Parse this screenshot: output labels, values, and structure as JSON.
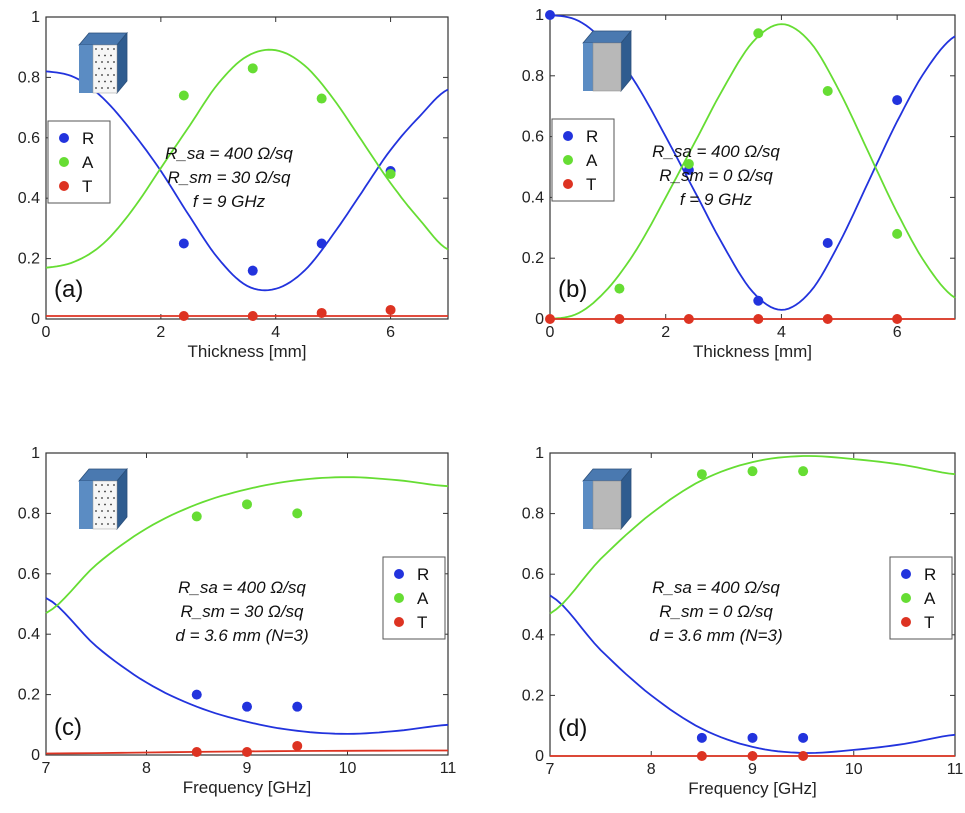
{
  "colors": {
    "R": "#2233dd",
    "A": "#66dd33",
    "T": "#dd3322",
    "axis": "#333333",
    "background": "#ffffff"
  },
  "chart_data": [
    {
      "type": "line",
      "panel_label": "(a)",
      "xlabel": "Thickness [mm]",
      "ylabel": "",
      "xlim": [
        0,
        7
      ],
      "ylim": [
        0,
        1
      ],
      "xticks": [
        "0",
        "2",
        "4",
        "6"
      ],
      "yticks": [
        "0",
        "0.2",
        "0.4",
        "0.6",
        "0.8",
        "1"
      ],
      "annotation": [
        "R_sa = 400 Ω/sq",
        "R_sm = 30 Ω/sq",
        "f = 9 GHz"
      ],
      "legend": [
        "R",
        "A",
        "T"
      ],
      "legend_position": "left",
      "icon": "porous-slab-icon",
      "series": [
        {
          "name": "R",
          "kind": "line",
          "x": [
            0,
            0.5,
            1,
            1.5,
            2,
            2.5,
            3,
            3.5,
            4,
            4.5,
            5,
            5.5,
            6,
            6.5,
            7
          ],
          "y": [
            0.82,
            0.8,
            0.73,
            0.62,
            0.49,
            0.34,
            0.2,
            0.11,
            0.1,
            0.16,
            0.28,
            0.42,
            0.56,
            0.67,
            0.76
          ]
        },
        {
          "name": "A",
          "kind": "line",
          "x": [
            0,
            0.5,
            1,
            1.5,
            2,
            2.5,
            3,
            3.5,
            4,
            4.5,
            5,
            5.5,
            6,
            6.5,
            7
          ],
          "y": [
            0.17,
            0.19,
            0.25,
            0.36,
            0.5,
            0.64,
            0.78,
            0.87,
            0.89,
            0.84,
            0.73,
            0.59,
            0.45,
            0.33,
            0.23
          ]
        },
        {
          "name": "T",
          "kind": "line",
          "x": [
            0,
            7
          ],
          "y": [
            0.01,
            0.01
          ]
        },
        {
          "name": "R",
          "kind": "points",
          "x": [
            2.4,
            3.6,
            4.8,
            6.0
          ],
          "y": [
            0.25,
            0.16,
            0.25,
            0.49
          ]
        },
        {
          "name": "A",
          "kind": "points",
          "x": [
            2.4,
            3.6,
            4.8,
            6.0
          ],
          "y": [
            0.74,
            0.83,
            0.73,
            0.48
          ]
        },
        {
          "name": "T",
          "kind": "points",
          "x": [
            2.4,
            3.6,
            4.8,
            6.0
          ],
          "y": [
            0.01,
            0.01,
            0.02,
            0.03
          ]
        }
      ]
    },
    {
      "type": "line",
      "panel_label": "(b)",
      "xlabel": "Thickness [mm]",
      "ylabel": "",
      "xlim": [
        0,
        7
      ],
      "ylim": [
        0,
        1
      ],
      "xticks": [
        "0",
        "2",
        "4",
        "6"
      ],
      "yticks": [
        "0",
        "0.2",
        "0.4",
        "0.6",
        "0.8",
        "1"
      ],
      "annotation": [
        "R_sa = 400 Ω/sq",
        "R_sm = 0 Ω/sq",
        "f = 9 GHz"
      ],
      "legend": [
        "R",
        "A",
        "T"
      ],
      "legend_position": "left",
      "icon": "metal-backed-slab-icon",
      "series": [
        {
          "name": "R",
          "kind": "line",
          "x": [
            0,
            0.5,
            1,
            1.5,
            2,
            2.5,
            3,
            3.5,
            4,
            4.5,
            5,
            5.5,
            6,
            6.5,
            7
          ],
          "y": [
            1.0,
            0.98,
            0.9,
            0.77,
            0.6,
            0.42,
            0.24,
            0.09,
            0.03,
            0.09,
            0.25,
            0.45,
            0.65,
            0.82,
            0.93
          ]
        },
        {
          "name": "A",
          "kind": "line",
          "x": [
            0,
            0.5,
            1,
            1.5,
            2,
            2.5,
            3,
            3.5,
            4,
            4.5,
            5,
            5.5,
            6,
            6.5,
            7
          ],
          "y": [
            0.0,
            0.02,
            0.1,
            0.23,
            0.4,
            0.58,
            0.76,
            0.91,
            0.97,
            0.91,
            0.75,
            0.55,
            0.35,
            0.18,
            0.07
          ]
        },
        {
          "name": "T",
          "kind": "line",
          "x": [
            0,
            7
          ],
          "y": [
            0.0,
            0.0
          ]
        },
        {
          "name": "R",
          "kind": "points",
          "x": [
            0,
            1.2,
            2.4,
            3.6,
            4.8,
            6.0
          ],
          "y": [
            1.0,
            0.9,
            0.49,
            0.06,
            0.25,
            0.72
          ]
        },
        {
          "name": "A",
          "kind": "points",
          "x": [
            1.2,
            2.4,
            3.6,
            4.8,
            6.0
          ],
          "y": [
            0.1,
            0.51,
            0.94,
            0.75,
            0.28
          ]
        },
        {
          "name": "T",
          "kind": "points",
          "x": [
            0,
            1.2,
            2.4,
            3.6,
            4.8,
            6.0
          ],
          "y": [
            0,
            0,
            0,
            0,
            0,
            0
          ]
        }
      ]
    },
    {
      "type": "line",
      "panel_label": "(c)",
      "xlabel": "Frequency [GHz]",
      "ylabel": "",
      "xlim": [
        7,
        11
      ],
      "ylim": [
        0,
        1
      ],
      "xticks": [
        "7",
        "8",
        "9",
        "10",
        "11"
      ],
      "yticks": [
        "0",
        "0.2",
        "0.4",
        "0.6",
        "0.8",
        "1"
      ],
      "annotation": [
        "R_sa = 400 Ω/sq",
        "R_sm = 30 Ω/sq",
        "d = 3.6 mm (N=3)"
      ],
      "legend": [
        "R",
        "A",
        "T"
      ],
      "legend_position": "right",
      "icon": "porous-slab-icon",
      "series": [
        {
          "name": "R",
          "kind": "line",
          "x": [
            7,
            7.5,
            8,
            8.5,
            9,
            9.5,
            10,
            10.5,
            11
          ],
          "y": [
            0.52,
            0.36,
            0.24,
            0.16,
            0.11,
            0.08,
            0.07,
            0.08,
            0.1
          ]
        },
        {
          "name": "A",
          "kind": "line",
          "x": [
            7,
            7.5,
            8,
            8.5,
            9,
            9.5,
            10,
            10.5,
            11
          ],
          "y": [
            0.47,
            0.63,
            0.75,
            0.83,
            0.88,
            0.91,
            0.92,
            0.91,
            0.89
          ]
        },
        {
          "name": "T",
          "kind": "line",
          "x": [
            7,
            9,
            11
          ],
          "y": [
            0.005,
            0.012,
            0.015
          ]
        },
        {
          "name": "R",
          "kind": "points",
          "x": [
            8.5,
            9.0,
            9.5
          ],
          "y": [
            0.2,
            0.16,
            0.16
          ]
        },
        {
          "name": "A",
          "kind": "points",
          "x": [
            8.5,
            9.0,
            9.5
          ],
          "y": [
            0.79,
            0.83,
            0.8
          ]
        },
        {
          "name": "T",
          "kind": "points",
          "x": [
            8.5,
            9.0,
            9.5
          ],
          "y": [
            0.01,
            0.01,
            0.03
          ]
        }
      ]
    },
    {
      "type": "line",
      "panel_label": "(d)",
      "xlabel": "Frequency [GHz]",
      "ylabel": "",
      "xlim": [
        7,
        11
      ],
      "ylim": [
        0,
        1
      ],
      "xticks": [
        "7",
        "8",
        "9",
        "10",
        "11"
      ],
      "yticks": [
        "0",
        "0.2",
        "0.4",
        "0.6",
        "0.8",
        "1"
      ],
      "annotation": [
        "R_sa = 400 Ω/sq",
        "R_sm = 0 Ω/sq",
        "d = 3.6 mm (N=3)"
      ],
      "legend": [
        "R",
        "A",
        "T"
      ],
      "legend_position": "right",
      "icon": "metal-backed-slab-icon",
      "series": [
        {
          "name": "R",
          "kind": "line",
          "x": [
            7,
            7.5,
            8,
            8.5,
            9,
            9.5,
            10,
            10.5,
            11
          ],
          "y": [
            0.53,
            0.35,
            0.2,
            0.09,
            0.03,
            0.01,
            0.02,
            0.04,
            0.07
          ]
        },
        {
          "name": "A",
          "kind": "line",
          "x": [
            7,
            7.5,
            8,
            8.5,
            9,
            9.5,
            10,
            10.5,
            11
          ],
          "y": [
            0.47,
            0.65,
            0.8,
            0.91,
            0.97,
            0.99,
            0.98,
            0.96,
            0.93
          ]
        },
        {
          "name": "T",
          "kind": "line",
          "x": [
            7,
            11
          ],
          "y": [
            0.0,
            0.0
          ]
        },
        {
          "name": "R",
          "kind": "points",
          "x": [
            8.5,
            9.0,
            9.5
          ],
          "y": [
            0.06,
            0.06,
            0.06
          ]
        },
        {
          "name": "A",
          "kind": "points",
          "x": [
            8.5,
            9.0,
            9.5
          ],
          "y": [
            0.93,
            0.94,
            0.94
          ]
        },
        {
          "name": "T",
          "kind": "points",
          "x": [
            8.5,
            9.0,
            9.5
          ],
          "y": [
            0,
            0,
            0
          ]
        }
      ]
    }
  ]
}
